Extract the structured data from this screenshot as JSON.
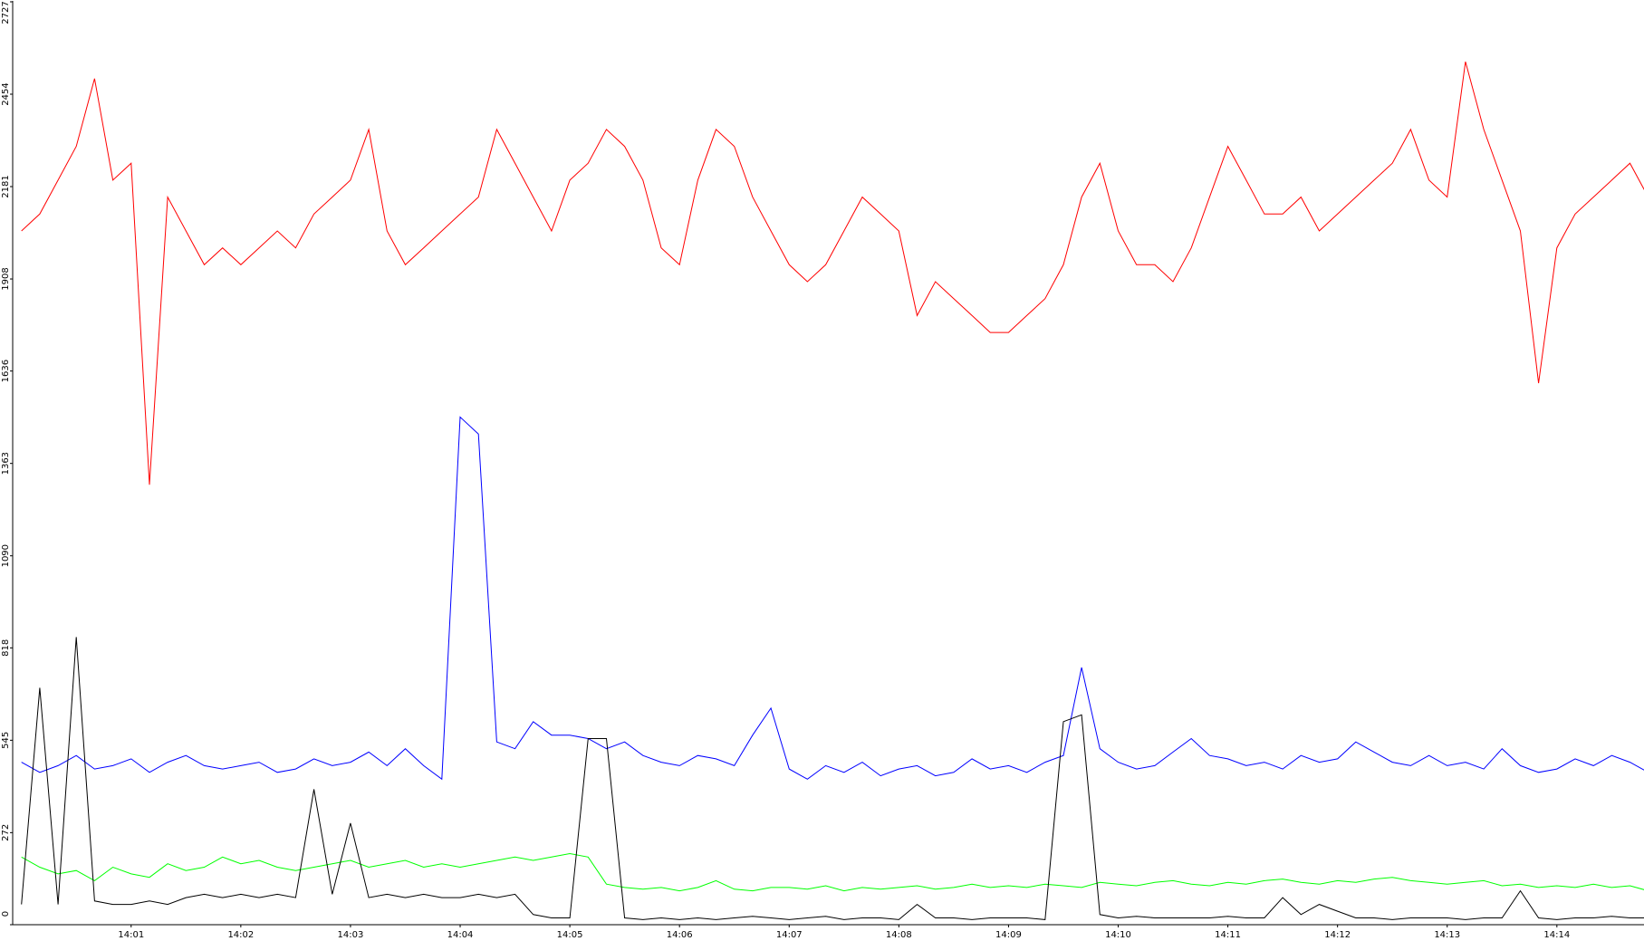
{
  "chart_data": {
    "type": "line",
    "categories": [
      null,
      null,
      null,
      null,
      null,
      null,
      "14:01",
      null,
      null,
      null,
      null,
      null,
      "14:02",
      null,
      null,
      null,
      null,
      null,
      "14:03",
      null,
      null,
      null,
      null,
      null,
      "14:04",
      null,
      null,
      null,
      null,
      null,
      "14:05",
      null,
      null,
      null,
      null,
      null,
      "14:06",
      null,
      null,
      null,
      null,
      null,
      "14:07",
      null,
      null,
      null,
      null,
      null,
      "14:08",
      null,
      null,
      null,
      null,
      null,
      "14:09",
      null,
      null,
      null,
      null,
      null,
      "14:10",
      null,
      null,
      null,
      null,
      null,
      "14:11",
      null,
      null,
      null,
      null,
      null,
      "14:12",
      null,
      null,
      null,
      null,
      null,
      "14:13",
      null,
      null,
      null,
      null,
      null,
      "14:14",
      null,
      null,
      null,
      null,
      null
    ],
    "ylim": [
      0,
      2727
    ],
    "yticks": [
      0,
      272,
      545,
      818,
      1090,
      1363,
      1636,
      1908,
      2181,
      2454,
      2727
    ],
    "series": [
      {
        "color": "#ff0000",
        "values": [
          2050,
          2100,
          2200,
          2300,
          2500,
          2200,
          2250,
          1300,
          2150,
          2050,
          1950,
          2000,
          1950,
          2000,
          2050,
          2000,
          2100,
          2150,
          2200,
          2350,
          2050,
          1950,
          2000,
          2050,
          2100,
          2150,
          2350,
          2250,
          2150,
          2050,
          2200,
          2250,
          2350,
          2300,
          2200,
          2000,
          1950,
          2200,
          2350,
          2300,
          2150,
          2050,
          1950,
          1900,
          1950,
          2050,
          2150,
          2100,
          2050,
          1800,
          1900,
          1850,
          1800,
          1750,
          1750,
          1800,
          1850,
          1950,
          2150,
          2250,
          2050,
          1950,
          1950,
          1900,
          2000,
          2150,
          2300,
          2200,
          2100,
          2100,
          2150,
          2050,
          2100,
          2150,
          2200,
          2250,
          2350,
          2200,
          2150,
          2550,
          2350,
          2200,
          2050,
          1600,
          2000,
          2100,
          2150,
          2200,
          2250,
          2150
        ]
      },
      {
        "color": "#0000ff",
        "values": [
          480,
          450,
          470,
          500,
          460,
          470,
          490,
          450,
          480,
          500,
          470,
          460,
          470,
          480,
          450,
          460,
          490,
          470,
          480,
          510,
          470,
          520,
          470,
          430,
          1500,
          1450,
          540,
          520,
          600,
          560,
          560,
          550,
          520,
          540,
          500,
          480,
          470,
          500,
          490,
          470,
          560,
          640,
          460,
          430,
          470,
          450,
          480,
          440,
          460,
          470,
          440,
          450,
          490,
          460,
          470,
          450,
          480,
          500,
          760,
          520,
          480,
          460,
          470,
          510,
          550,
          500,
          490,
          470,
          480,
          460,
          500,
          480,
          490,
          540,
          510,
          480,
          470,
          500,
          470,
          480,
          460,
          520,
          470,
          450,
          460,
          490,
          470,
          500,
          480,
          450
        ]
      },
      {
        "color": "#00ff00",
        "values": [
          200,
          170,
          150,
          160,
          130,
          170,
          150,
          140,
          180,
          160,
          170,
          200,
          180,
          190,
          170,
          160,
          170,
          180,
          190,
          170,
          180,
          190,
          170,
          180,
          170,
          180,
          190,
          200,
          190,
          200,
          210,
          200,
          120,
          110,
          105,
          110,
          100,
          110,
          130,
          105,
          100,
          110,
          110,
          105,
          115,
          100,
          110,
          105,
          110,
          115,
          105,
          110,
          120,
          110,
          115,
          110,
          120,
          115,
          110,
          125,
          120,
          115,
          125,
          130,
          120,
          115,
          125,
          120,
          130,
          135,
          125,
          120,
          130,
          125,
          135,
          140,
          130,
          125,
          120,
          125,
          130,
          115,
          120,
          110,
          115,
          110,
          120,
          110,
          115,
          100
        ]
      },
      {
        "color": "#000000",
        "values": [
          60,
          700,
          60,
          850,
          70,
          60,
          60,
          70,
          60,
          80,
          90,
          80,
          90,
          80,
          90,
          80,
          400,
          90,
          300,
          80,
          90,
          80,
          90,
          80,
          80,
          90,
          80,
          90,
          30,
          20,
          20,
          550,
          550,
          20,
          15,
          20,
          15,
          20,
          15,
          20,
          25,
          20,
          15,
          20,
          25,
          15,
          20,
          20,
          15,
          60,
          20,
          20,
          15,
          20,
          20,
          20,
          15,
          600,
          620,
          30,
          20,
          25,
          20,
          20,
          20,
          20,
          25,
          20,
          20,
          80,
          30,
          60,
          40,
          20,
          20,
          15,
          20,
          20,
          20,
          15,
          20,
          20,
          100,
          20,
          15,
          20,
          20,
          25,
          20,
          20
        ]
      }
    ]
  }
}
